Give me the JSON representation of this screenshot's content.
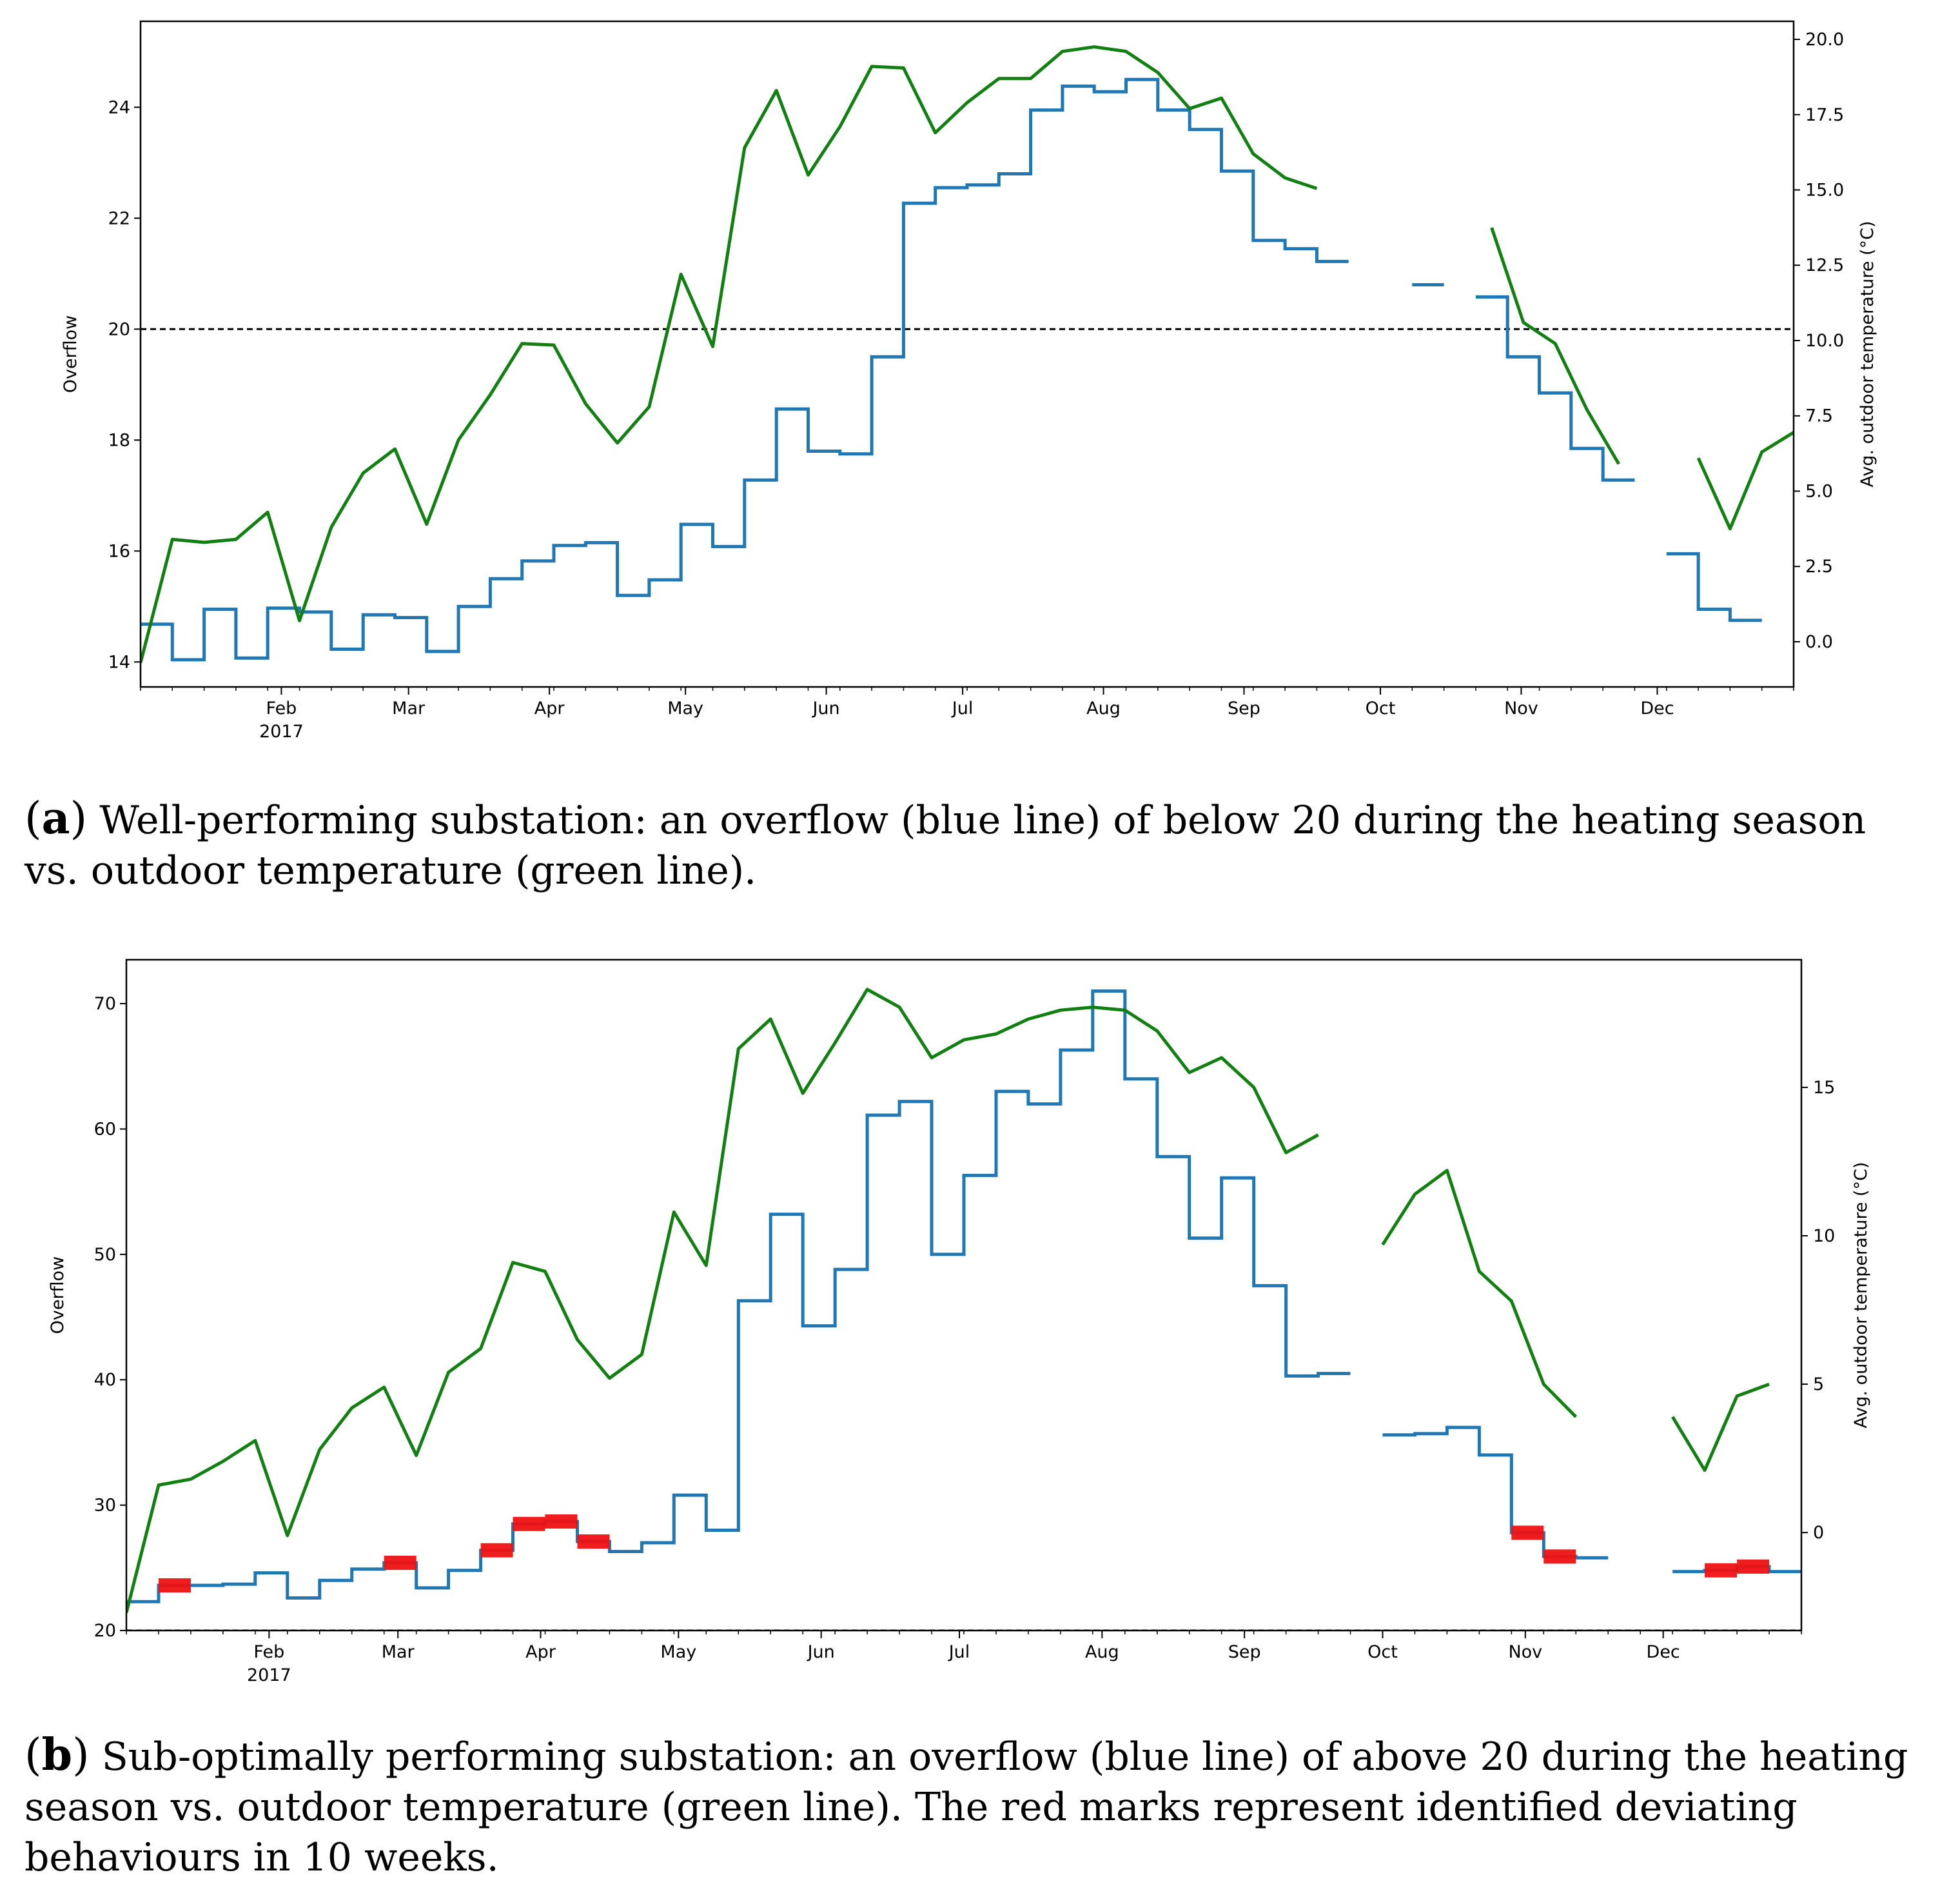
{
  "caption_a": {
    "label": "a",
    "text": "Well-performing substation: an overflow (blue line) of below 20 during the heating season vs. outdoor temperature (green line)."
  },
  "caption_b": {
    "label": "b",
    "text": "Sub-optimally performing substation: an overflow (blue line) of above 20 during the heating season vs. outdoor temperature (green line). The red marks represent identified deviating behaviours in 10 weeks."
  },
  "colors": {
    "overflow": "#1f77b4",
    "temperature": "#118011",
    "anomaly": "#ee1111",
    "threshold": "#000000"
  },
  "chart_data": [
    {
      "type": "line",
      "panel": "a",
      "ylabel": "Overflow",
      "y2label": "Avg. outdoor temperature (°C)",
      "xlim": [
        0,
        52
      ],
      "ylim": [
        13.55,
        25.55
      ],
      "y2lim": [
        -1.5,
        20.6
      ],
      "yticks": [
        "14",
        "16",
        "18",
        "20",
        "22",
        "24"
      ],
      "y2ticks": [
        "0.0",
        "2.5",
        "5.0",
        "7.5",
        "10.0",
        "12.5",
        "15.0",
        "17.5",
        "20.0"
      ],
      "month_ticks": [
        {
          "label": "Feb",
          "pos": 4.43
        },
        {
          "label": "Mar",
          "pos": 8.43
        },
        {
          "label": "Apr",
          "pos": 12.86
        },
        {
          "label": "May",
          "pos": 17.14
        },
        {
          "label": "Jun",
          "pos": 21.57
        },
        {
          "label": "Jul",
          "pos": 25.86
        },
        {
          "label": "Aug",
          "pos": 30.29
        },
        {
          "label": "Sep",
          "pos": 34.71
        },
        {
          "label": "Oct",
          "pos": 39.0
        },
        {
          "label": "Nov",
          "pos": 43.43
        },
        {
          "label": "Dec",
          "pos": 47.71
        }
      ],
      "year_label": "2017",
      "threshold": 20,
      "overflow_series": {
        "name": "Overflow",
        "segments": [
          [
            14.68,
            14.04,
            14.95,
            14.07,
            14.97,
            14.9,
            14.23,
            14.85,
            14.8,
            14.19,
            15.0,
            15.5,
            15.82,
            16.1,
            16.15,
            15.2,
            15.48,
            16.48,
            16.08,
            17.28,
            18.56,
            17.8,
            17.75,
            19.5,
            22.27,
            22.55,
            22.6,
            22.8,
            23.95,
            24.38,
            24.28,
            24.5,
            23.95,
            23.6,
            22.85,
            21.6,
            21.45,
            21.22
          ],
          [
            20.8
          ],
          [
            20.58,
            19.5,
            18.85,
            17.85,
            17.28
          ],
          [
            15.95,
            14.95,
            14.75
          ]
        ],
        "segment_start_weeks": [
          0,
          40,
          42,
          48
        ]
      },
      "temperature_series": {
        "name": "Avg. outdoor temperature",
        "segments": [
          [
            -0.7,
            3.4,
            3.3,
            3.4,
            4.3,
            0.7,
            3.8,
            5.6,
            6.4,
            3.9,
            6.7,
            8.2,
            9.9,
            9.85,
            7.9,
            6.6,
            7.8,
            12.2,
            9.8,
            16.4,
            18.3,
            15.5,
            17.1,
            19.1,
            19.05,
            16.9,
            17.9,
            18.7,
            18.7,
            19.6,
            19.75,
            19.6,
            18.9,
            17.7,
            18.05,
            16.2,
            15.4,
            15.05
          ],
          [
            13.75,
            10.6,
            9.9,
            7.7,
            5.9
          ],
          [
            6.1,
            3.75,
            6.3,
            6.95
          ]
        ],
        "segment_start_weeks": [
          0,
          42.5,
          49
        ]
      }
    },
    {
      "type": "line",
      "panel": "b",
      "ylabel": "Overflow",
      "y2label": "Avg. outdoor temperature (°C)",
      "xlim": [
        0,
        52
      ],
      "ylim": [
        20,
        73.5
      ],
      "y2lim": [
        -3.3,
        19.3
      ],
      "yticks": [
        "20",
        "30",
        "40",
        "50",
        "60",
        "70"
      ],
      "y2ticks": [
        "0",
        "5",
        "10",
        "15"
      ],
      "month_ticks": [
        {
          "label": "Feb",
          "pos": 4.43
        },
        {
          "label": "Mar",
          "pos": 8.43
        },
        {
          "label": "Apr",
          "pos": 12.86
        },
        {
          "label": "May",
          "pos": 17.14
        },
        {
          "label": "Jun",
          "pos": 21.57
        },
        {
          "label": "Jul",
          "pos": 25.86
        },
        {
          "label": "Aug",
          "pos": 30.29
        },
        {
          "label": "Sep",
          "pos": 34.71
        },
        {
          "label": "Oct",
          "pos": 39.0
        },
        {
          "label": "Nov",
          "pos": 43.43
        },
        {
          "label": "Dec",
          "pos": 47.71
        }
      ],
      "year_label": "2017",
      "threshold": 20,
      "overflow_series": {
        "name": "Overflow",
        "segments": [
          [
            22.3,
            23.6,
            23.6,
            23.7,
            24.6,
            22.6,
            24.0,
            24.9,
            25.4,
            23.4,
            24.8,
            26.4,
            28.5,
            28.7,
            27.1,
            26.3,
            27.0,
            30.8,
            28.0,
            46.3,
            53.2,
            44.3,
            48.8,
            61.1,
            62.2,
            50.0,
            56.3,
            63.0,
            62.0,
            66.3,
            71.0,
            64.0,
            57.8,
            51.3,
            56.1,
            47.5,
            40.3,
            40.5
          ],
          [
            35.6,
            35.7,
            36.2,
            34.0,
            27.8,
            25.9,
            25.8
          ],
          [
            24.7,
            24.8,
            25.1,
            24.7
          ]
        ],
        "segment_start_weeks": [
          0,
          39,
          48
        ]
      },
      "temperature_series": {
        "name": "Avg. outdoor temperature",
        "segments": [
          [
            -2.7,
            1.6,
            1.8,
            2.4,
            3.1,
            -0.1,
            2.8,
            4.2,
            4.9,
            2.6,
            5.4,
            6.2,
            9.1,
            8.8,
            6.5,
            5.2,
            6.0,
            10.8,
            9.0,
            16.3,
            17.3,
            14.8,
            16.5,
            18.3,
            17.7,
            16.0,
            16.6,
            16.8,
            17.3,
            17.6,
            17.7,
            17.6,
            16.9,
            15.5,
            16.0,
            15.0,
            12.8,
            13.4
          ],
          [
            9.7,
            11.4,
            12.2,
            8.8,
            7.8,
            5.0,
            3.9
          ],
          [
            3.9,
            2.1,
            4.6,
            5.0
          ]
        ],
        "segment_start_weeks": [
          0,
          39,
          48
        ]
      },
      "anomaly_weeks": [
        1,
        8,
        11,
        12,
        13,
        14,
        43,
        44,
        49,
        50
      ]
    }
  ]
}
